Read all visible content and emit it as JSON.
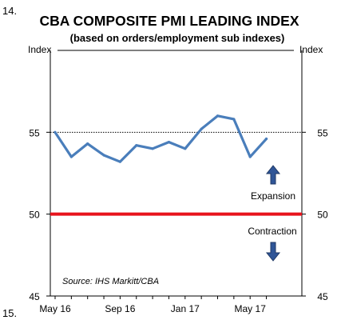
{
  "page": {
    "number_top": "14.",
    "number_bottom": "15."
  },
  "chart_data": {
    "type": "line",
    "title": "CBA COMPOSITE PMI LEADING INDEX",
    "subtitle": "(based on orders/employment sub indexes)",
    "ylabel_left": "Index",
    "ylabel_right": "Index",
    "ylim": [
      45,
      60
    ],
    "yticks": [
      45,
      50,
      55
    ],
    "xticks": [
      "May 16",
      "Sep 16",
      "Jan 17",
      "May 17"
    ],
    "x": [
      "May 16",
      "Jun 16",
      "Jul 16",
      "Aug 16",
      "Sep 16",
      "Oct 16",
      "Nov 16",
      "Dec 16",
      "Jan 17",
      "Feb 17",
      "Mar 17",
      "Apr 17",
      "May 17",
      "Jun 17"
    ],
    "series": [
      {
        "values": [
          55.0,
          53.5,
          54.3,
          53.6,
          53.2,
          54.2,
          54.0,
          54.4,
          54.0,
          55.2,
          56.0,
          55.8,
          53.5,
          54.6
        ],
        "color": "#4a7ebb"
      }
    ],
    "reference_lines": [
      {
        "value": 55,
        "style": "dotted",
        "color": "#000000"
      },
      {
        "value": 50,
        "style": "solid",
        "color": "#e8141c"
      }
    ],
    "annotations": {
      "expansion": "Expansion",
      "contraction": "Contraction",
      "source": "Source: IHS Markitt/CBA"
    },
    "arrow_color": "#2f5597",
    "grid": false
  }
}
